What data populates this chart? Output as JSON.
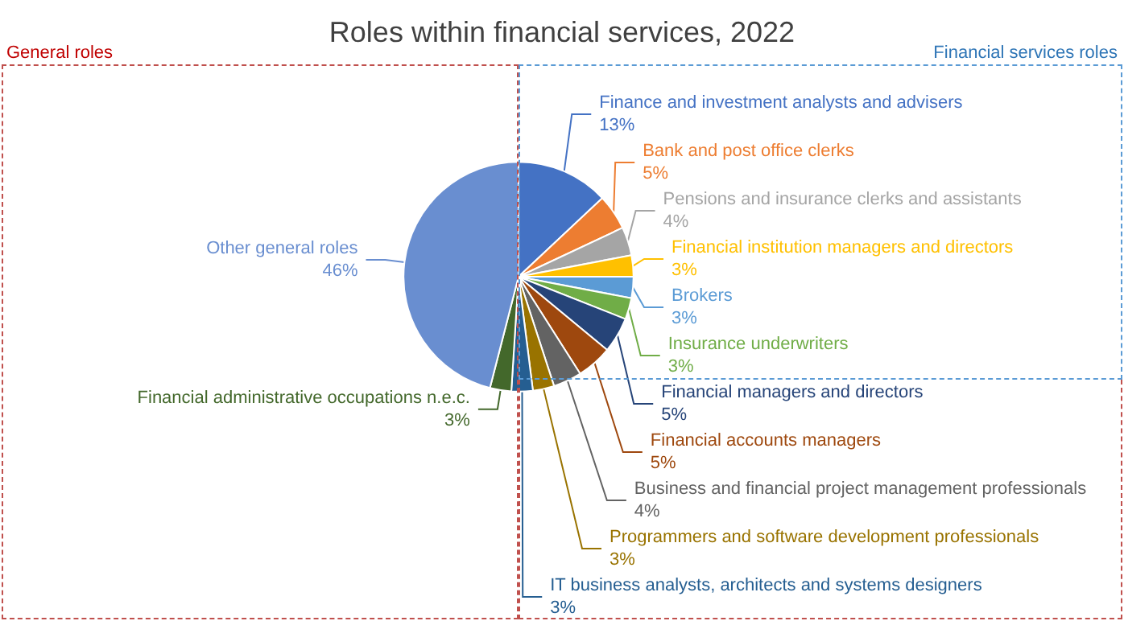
{
  "chart_data": {
    "type": "pie",
    "title": "Roles within financial services, 2022",
    "categories": [
      "Finance and investment analysts and advisers",
      "Bank and post office clerks",
      "Pensions and insurance clerks and assistants",
      "Financial institution managers and directors",
      "Brokers",
      "Insurance underwriters",
      "Financial managers and directors",
      "Financial accounts managers",
      "Business and financial project management professionals",
      "Programmers and software development professionals",
      "IT business analysts, architects and systems designers",
      "Financial administrative occupations n.e.c.",
      "Other general roles"
    ],
    "values": [
      13,
      5,
      4,
      3,
      3,
      3,
      5,
      5,
      4,
      3,
      3,
      3,
      46
    ],
    "colors": [
      "#4472c4",
      "#ed7d31",
      "#a5a5a5",
      "#ffc000",
      "#5b9bd5",
      "#70ad47",
      "#264478",
      "#9e480e",
      "#636363",
      "#997300",
      "#255e91",
      "#43682b",
      "#698ed0"
    ],
    "value_labels": [
      "13%",
      "5%",
      "4%",
      "3%",
      "3%",
      "3%",
      "5%",
      "5%",
      "4%",
      "3%",
      "3%",
      "3%",
      "46%"
    ],
    "legend": false,
    "annotations": [
      "General roles",
      "Financial services roles"
    ]
  }
}
